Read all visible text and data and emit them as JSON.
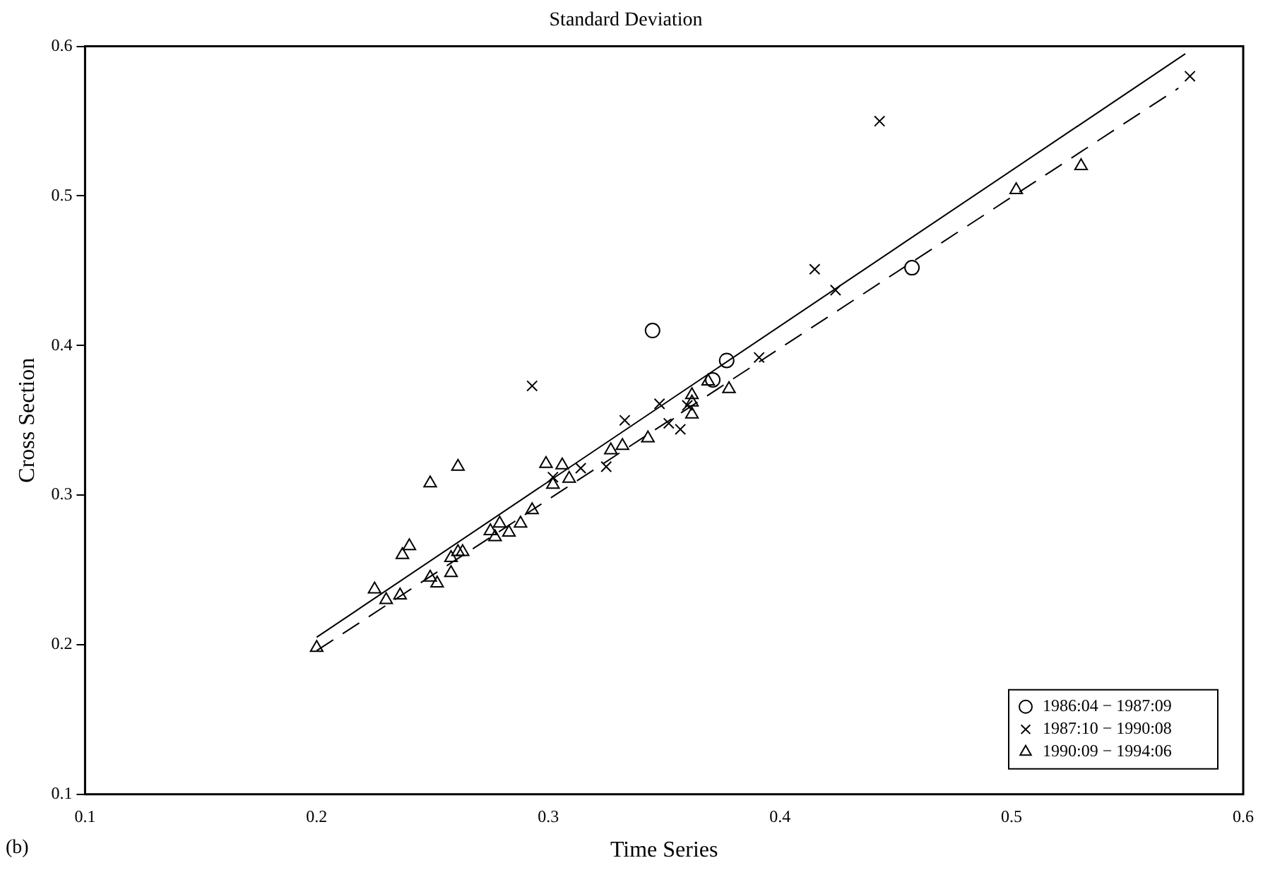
{
  "chart_data": {
    "type": "scatter",
    "title": "Standard Deviation",
    "xlabel": "Time Series",
    "ylabel": "Cross Section",
    "annotations": [
      "(b)"
    ],
    "xlim": [
      0.1,
      0.6
    ],
    "xticks": [
      0.1,
      0.2,
      0.3,
      0.4,
      0.5,
      0.6
    ],
    "ylim": [
      0.1,
      0.6
    ],
    "yticks": [
      0.1,
      0.2,
      0.3,
      0.4,
      0.5,
      0.6
    ],
    "grid": false,
    "legend": "bottom right",
    "series": [
      {
        "name": "1986:04 − 1987:09",
        "color": "#000000",
        "marker": "circle",
        "x": [
          0.345,
          0.377,
          0.371,
          0.457
        ],
        "values": [
          0.41,
          0.39,
          0.377,
          0.452
        ]
      },
      {
        "name": "1987:10 − 1990:08",
        "color": "#000000",
        "marker": "cross",
        "x": [
          0.293,
          0.302,
          0.314,
          0.325,
          0.333,
          0.348,
          0.352,
          0.357,
          0.36,
          0.391,
          0.415,
          0.424,
          0.443,
          0.577
        ],
        "values": [
          0.373,
          0.312,
          0.318,
          0.319,
          0.35,
          0.361,
          0.348,
          0.344,
          0.36,
          0.392,
          0.451,
          0.437,
          0.55,
          0.58
        ]
      },
      {
        "name": "1990:09 − 1994:06",
        "color": "#000000",
        "marker": "triangle",
        "x": [
          0.2,
          0.225,
          0.23,
          0.236,
          0.237,
          0.24,
          0.249,
          0.261,
          0.249,
          0.252,
          0.258,
          0.258,
          0.261,
          0.263,
          0.275,
          0.277,
          0.279,
          0.283,
          0.288,
          0.293,
          0.299,
          0.306,
          0.309,
          0.302,
          0.327,
          0.332,
          0.343,
          0.362,
          0.362,
          0.362,
          0.369,
          0.378,
          0.502,
          0.53
        ],
        "values": [
          0.198,
          0.237,
          0.23,
          0.233,
          0.26,
          0.266,
          0.308,
          0.319,
          0.245,
          0.241,
          0.248,
          0.258,
          0.262,
          0.262,
          0.276,
          0.272,
          0.281,
          0.275,
          0.281,
          0.29,
          0.321,
          0.32,
          0.311,
          0.307,
          0.33,
          0.333,
          0.338,
          0.354,
          0.362,
          0.367,
          0.376,
          0.371,
          0.504,
          0.52
        ]
      },
      {
        "type": "line",
        "color": "#000000",
        "line_style": "solid",
        "x": [
          0.2,
          0.575
        ],
        "values": [
          0.205,
          0.595
        ]
      },
      {
        "type": "line",
        "color": "#000000",
        "line_style": "dashed",
        "x": [
          0.2,
          0.572
        ],
        "values": [
          0.196,
          0.572
        ]
      }
    ]
  }
}
